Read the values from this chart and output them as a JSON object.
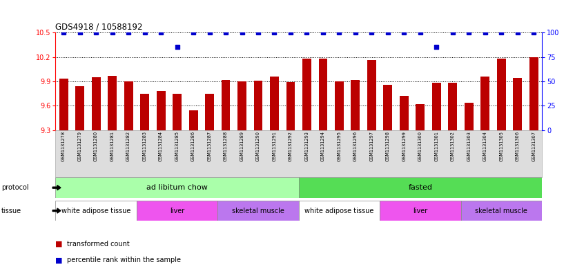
{
  "title": "GDS4918 / 10588192",
  "samples": [
    "GSM1131278",
    "GSM1131279",
    "GSM1131280",
    "GSM1131281",
    "GSM1131282",
    "GSM1131283",
    "GSM1131284",
    "GSM1131285",
    "GSM1131286",
    "GSM1131287",
    "GSM1131288",
    "GSM1131289",
    "GSM1131290",
    "GSM1131291",
    "GSM1131292",
    "GSM1131293",
    "GSM1131294",
    "GSM1131295",
    "GSM1131296",
    "GSM1131297",
    "GSM1131298",
    "GSM1131299",
    "GSM1131300",
    "GSM1131301",
    "GSM1131302",
    "GSM1131303",
    "GSM1131304",
    "GSM1131305",
    "GSM1131306",
    "GSM1131307"
  ],
  "bar_values": [
    9.93,
    9.84,
    9.95,
    9.97,
    9.9,
    9.75,
    9.78,
    9.75,
    9.54,
    9.75,
    9.92,
    9.9,
    9.91,
    9.96,
    9.89,
    10.18,
    10.18,
    9.9,
    9.92,
    10.16,
    9.86,
    9.72,
    9.62,
    9.88,
    9.88,
    9.64,
    9.96,
    10.18,
    9.94,
    10.2
  ],
  "percentile_values": [
    100,
    100,
    100,
    100,
    100,
    100,
    100,
    85,
    100,
    100,
    100,
    100,
    100,
    100,
    100,
    100,
    100,
    100,
    100,
    100,
    100,
    100,
    100,
    85,
    100,
    100,
    100,
    100,
    100,
    100
  ],
  "bar_color": "#bb0000",
  "dot_color": "#0000cc",
  "ylim_left": [
    9.3,
    10.5
  ],
  "yticks_left": [
    9.3,
    9.6,
    9.9,
    10.2,
    10.5
  ],
  "ylim_right": [
    0,
    100
  ],
  "yticks_right": [
    0,
    25,
    50,
    75,
    100
  ],
  "grid_lines": [
    9.6,
    9.9,
    10.2,
    10.5
  ],
  "protocol_groups": [
    {
      "label": "ad libitum chow",
      "start": 0,
      "end": 14,
      "color": "#aaffaa"
    },
    {
      "label": "fasted",
      "start": 15,
      "end": 29,
      "color": "#55dd55"
    }
  ],
  "tissue_groups": [
    {
      "label": "white adipose tissue",
      "start": 0,
      "end": 4,
      "color": "#ffffff"
    },
    {
      "label": "liver",
      "start": 5,
      "end": 9,
      "color": "#ee55ee"
    },
    {
      "label": "skeletal muscle",
      "start": 10,
      "end": 14,
      "color": "#bb77ee"
    },
    {
      "label": "white adipose tissue",
      "start": 15,
      "end": 19,
      "color": "#ffffff"
    },
    {
      "label": "liver",
      "start": 20,
      "end": 24,
      "color": "#ee55ee"
    },
    {
      "label": "skeletal muscle",
      "start": 25,
      "end": 29,
      "color": "#bb77ee"
    }
  ],
  "bg_color": "#ffffff",
  "label_fontsize": 7,
  "tick_fontsize": 7,
  "bar_fontsize": 4.8,
  "protocol_label": "protocol",
  "tissue_label": "tissue",
  "legend_bar_label": "transformed count",
  "legend_dot_label": "percentile rank within the sample"
}
